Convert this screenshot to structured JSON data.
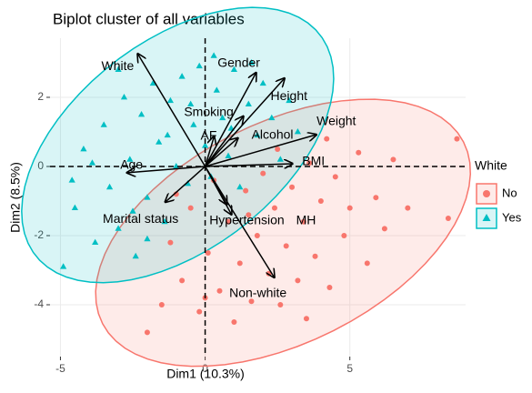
{
  "chart_data": {
    "type": "biplot",
    "title": "Biplot cluster of all variables",
    "x_label": "Dim1 (10.3%)",
    "y_label": "Dim2 (8.5%)",
    "xlim": [
      -5.36,
      9.0
    ],
    "ylim": [
      -5.5,
      3.71
    ],
    "xticks": [
      -5,
      0,
      5
    ],
    "yticks": [
      -4,
      -2,
      0,
      2
    ],
    "grid": true,
    "reference_lines": {
      "x": 0,
      "y": 0
    },
    "legend_title": "White",
    "legend_position": "right",
    "series": [
      {
        "name": "No",
        "color": "#F8766D",
        "marker": "circle",
        "x": [
          -2,
          -1.5,
          -1.2,
          -0.8,
          -0.5,
          -0.2,
          0.1,
          0.3,
          0.5,
          0.8,
          1,
          1.2,
          1.4,
          1.6,
          1.8,
          2,
          2.2,
          2.4,
          2.6,
          2.8,
          3,
          3.2,
          3.4,
          3.6,
          3.8,
          4,
          4.3,
          4.5,
          4.8,
          5,
          5.3,
          5.6,
          5.9,
          6.2,
          6.5,
          7,
          8.7,
          8.4,
          1.5,
          2.5,
          4.2,
          -1,
          0,
          3.5
        ],
        "y": [
          -4.8,
          -4,
          -2.2,
          -3.3,
          -1.2,
          -4.2,
          -2.5,
          -0.4,
          -3.6,
          -1.6,
          -4.5,
          -2.8,
          -0.7,
          -3.9,
          -2,
          -0.2,
          -3.1,
          -1.2,
          -4,
          -2.3,
          -0.6,
          -3.3,
          -1.6,
          0.1,
          -2.6,
          -1,
          -3.5,
          -0.3,
          -2,
          -1.2,
          0.4,
          -2.8,
          -0.9,
          -1.8,
          0.2,
          -1.2,
          0.8,
          -1.5,
          -1.4,
          0.5,
          0.8,
          -0.8,
          -3.8,
          -4.4
        ]
      },
      {
        "name": "Yes",
        "color": "#00BFC4",
        "marker": "triangle",
        "x": [
          -4.9,
          -4.5,
          -4.2,
          -3.8,
          -3.5,
          -3.3,
          -3,
          -2.8,
          -2.6,
          -2.4,
          -2.2,
          -2,
          -1.8,
          -1.6,
          -1.4,
          -1.2,
          -1,
          -0.8,
          -0.6,
          -0.4,
          -0.2,
          0,
          0.2,
          0.4,
          0.6,
          0.8,
          1,
          1.2,
          1.5,
          1.8,
          2,
          2.3,
          2.6,
          2.9,
          3.2,
          -3.9,
          -2.5,
          -1.3,
          -0.5,
          0.9,
          -2,
          -4.6,
          1.6,
          -3,
          0.3
        ],
        "y": [
          -2.9,
          -1.2,
          0.5,
          -2.2,
          1.2,
          -0.6,
          -1.8,
          2,
          0.2,
          -2.6,
          1.5,
          -0.9,
          2.4,
          0.7,
          -1.6,
          1.9,
          0,
          2.6,
          -0.5,
          1.2,
          2.9,
          0.6,
          -0.3,
          2.2,
          1.4,
          0.3,
          2.8,
          -0.6,
          1.8,
          0.9,
          2.4,
          1.4,
          0.2,
          1.9,
          1,
          0.1,
          -1.3,
          0.9,
          1.8,
          1.1,
          -2.1,
          -0.4,
          3.0,
          2.8,
          3.2
        ]
      }
    ],
    "vectors": [
      {
        "label": "White",
        "x": -2.33,
        "y": 3.26
      },
      {
        "label": "Gender",
        "x": 1.76,
        "y": 2.71
      },
      {
        "label": "Height",
        "x": 2.74,
        "y": 2.55
      },
      {
        "label": "Weight",
        "x": 3.84,
        "y": 0.92
      },
      {
        "label": "Smoking",
        "x": 1.32,
        "y": 1.45
      },
      {
        "label": "Alcohol",
        "x": 1.13,
        "y": 0.82
      },
      {
        "label": "AF",
        "x": 0.31,
        "y": 0.87
      },
      {
        "label": "BMI",
        "x": 3.02,
        "y": 0.08
      },
      {
        "label": "Age",
        "x": -2.7,
        "y": -0.18
      },
      {
        "label": "Marital status",
        "x": -1.38,
        "y": -1.03
      },
      {
        "label": "Hypertension",
        "x": 0.75,
        "y": -1.1
      },
      {
        "label": "MH",
        "x": 0.91,
        "y": -1.39
      },
      {
        "label": "Non-white",
        "x": 2.39,
        "y": -3.21
      }
    ]
  }
}
